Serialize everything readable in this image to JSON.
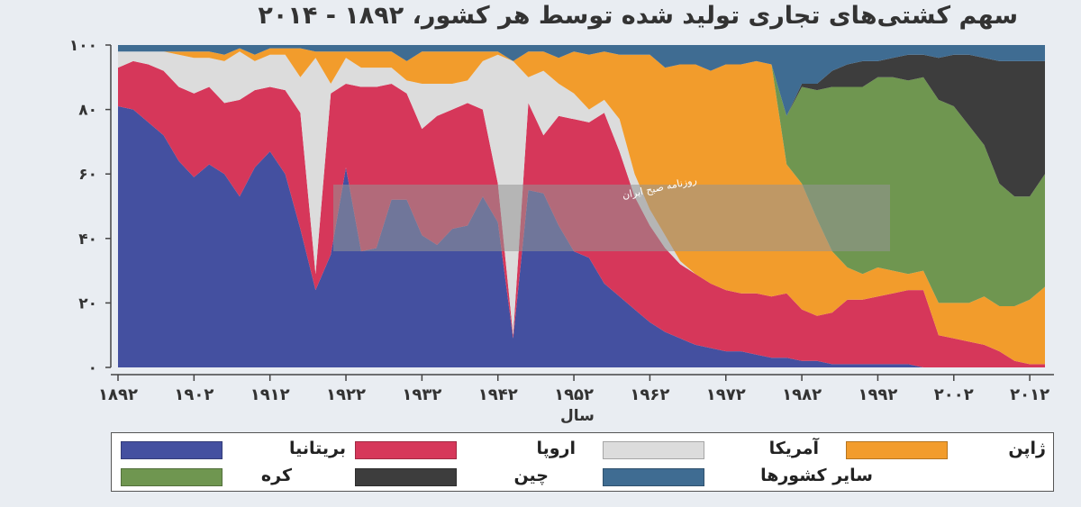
{
  "chart_data": {
    "type": "area",
    "stacked": true,
    "title": "سهم کشتی‌های تجاری تولید شده توسط هر کشور، ۱۸۹۲ - ۲۰۱۴",
    "xlabel": "سال",
    "ylabel": "",
    "xlim": [
      1892,
      2014
    ],
    "ylim": [
      0,
      100
    ],
    "yticks": [
      "۰",
      "۲۰",
      "۴۰",
      "۶۰",
      "۸۰",
      "۱۰۰"
    ],
    "xticks": [
      {
        "value": 1892,
        "label": "۱۸۹۲"
      },
      {
        "value": 1902,
        "label": "۱۹۰۲"
      },
      {
        "value": 1912,
        "label": "۱۹۱۲"
      },
      {
        "value": 1922,
        "label": "۱۹۲۲"
      },
      {
        "value": 1932,
        "label": "۱۹۳۲"
      },
      {
        "value": 1942,
        "label": "۱۹۴۲"
      },
      {
        "value": 1952,
        "label": "۱۹۵۲"
      },
      {
        "value": 1962,
        "label": "۱۹۶۲"
      },
      {
        "value": 1972,
        "label": "۱۹۷۲"
      },
      {
        "value": 1982,
        "label": "۱۹۸۲"
      },
      {
        "value": 1992,
        "label": "۱۹۹۲"
      },
      {
        "value": 2002,
        "label": "۲۰۰۲"
      },
      {
        "value": 2012,
        "label": "۲۰۱۲"
      }
    ],
    "x": [
      1892,
      1894,
      1896,
      1898,
      1900,
      1902,
      1904,
      1906,
      1908,
      1910,
      1912,
      1914,
      1916,
      1918,
      1920,
      1922,
      1924,
      1926,
      1928,
      1930,
      1932,
      1934,
      1936,
      1938,
      1940,
      1942,
      1944,
      1946,
      1948,
      1950,
      1952,
      1954,
      1956,
      1958,
      1960,
      1962,
      1964,
      1966,
      1968,
      1970,
      1972,
      1974,
      1976,
      1978,
      1980,
      1982,
      1984,
      1986,
      1988,
      1990,
      1992,
      1994,
      1996,
      1998,
      2000,
      2002,
      2004,
      2006,
      2008,
      2010,
      2012,
      2014
    ],
    "series": [
      {
        "name": "بریتانیا",
        "color": "#4450a0",
        "values": [
          81,
          80,
          76,
          72,
          64,
          59,
          63,
          60,
          53,
          62,
          67,
          60,
          43,
          24,
          35,
          62,
          36,
          37,
          52,
          52,
          41,
          38,
          43,
          44,
          53,
          45,
          9,
          55,
          54,
          44,
          36,
          34,
          26,
          22,
          18,
          14,
          11,
          9,
          7,
          6,
          5,
          5,
          4,
          3,
          3,
          2,
          2,
          1,
          1,
          1,
          1,
          1,
          1,
          0,
          0,
          0,
          0,
          0,
          0,
          0,
          0,
          0
        ]
      },
      {
        "name": "اروپا",
        "color": "#d6375a",
        "values": [
          12,
          15,
          18,
          20,
          23,
          26,
          24,
          22,
          30,
          24,
          20,
          26,
          36,
          5,
          50,
          26,
          51,
          50,
          36,
          33,
          33,
          40,
          37,
          38,
          27,
          12,
          1,
          27,
          18,
          34,
          41,
          42,
          53,
          45,
          35,
          30,
          26,
          23,
          22,
          20,
          19,
          18,
          19,
          19,
          20,
          16,
          14,
          16,
          20,
          20,
          21,
          22,
          23,
          24,
          10,
          9,
          8,
          7,
          5,
          2,
          1,
          1
        ]
      },
      {
        "name": "آمریکا",
        "color": "#dcdcdc",
        "values": [
          5,
          3,
          4,
          6,
          10,
          11,
          9,
          13,
          15,
          9,
          10,
          11,
          11,
          67,
          3,
          8,
          6,
          6,
          5,
          4,
          14,
          10,
          8,
          7,
          15,
          40,
          85,
          8,
          20,
          10,
          8,
          4,
          4,
          10,
          7,
          5,
          4,
          1,
          0,
          0,
          0,
          0,
          0,
          0,
          0,
          0,
          0,
          0,
          0,
          0,
          0,
          0,
          0,
          0,
          0,
          0,
          0,
          0,
          0,
          0,
          0,
          0
        ]
      },
      {
        "name": "ژاپن",
        "color": "#f29c2c",
        "values": [
          0,
          0,
          0,
          0,
          1,
          2,
          2,
          2,
          1,
          2,
          2,
          2,
          9,
          2,
          10,
          2,
          5,
          5,
          5,
          6,
          10,
          10,
          10,
          9,
          3,
          1,
          0,
          8,
          6,
          8,
          13,
          17,
          15,
          20,
          37,
          48,
          52,
          61,
          65,
          66,
          70,
          71,
          72,
          72,
          40,
          39,
          30,
          19,
          10,
          8,
          9,
          7,
          5,
          6,
          10,
          11,
          12,
          15,
          14,
          17,
          20,
          24
        ]
      },
      {
        "name": "کره",
        "color": "#6f9650",
        "values": [
          0,
          0,
          0,
          0,
          0,
          0,
          0,
          0,
          0,
          0,
          0,
          0,
          0,
          0,
          0,
          0,
          0,
          0,
          0,
          0,
          0,
          0,
          0,
          0,
          0,
          0,
          0,
          0,
          0,
          0,
          0,
          0,
          0,
          0,
          0,
          0,
          0,
          0,
          0,
          0,
          0,
          0,
          0,
          0,
          15,
          30,
          40,
          51,
          56,
          58,
          59,
          60,
          60,
          60,
          63,
          61,
          55,
          47,
          38,
          34,
          32,
          35
        ]
      },
      {
        "name": "چین",
        "color": "#3d3d3d",
        "values": [
          0,
          0,
          0,
          0,
          0,
          0,
          0,
          0,
          0,
          0,
          0,
          0,
          0,
          0,
          0,
          0,
          0,
          0,
          0,
          0,
          0,
          0,
          0,
          0,
          0,
          0,
          0,
          0,
          0,
          0,
          0,
          0,
          0,
          0,
          0,
          0,
          0,
          0,
          0,
          0,
          0,
          0,
          0,
          0,
          0,
          1,
          2,
          5,
          7,
          8,
          5,
          6,
          8,
          7,
          13,
          16,
          22,
          27,
          38,
          42,
          42,
          35
        ]
      },
      {
        "name": "سایر کشورها",
        "color": "#3f6c92",
        "values": [
          2,
          2,
          2,
          2,
          2,
          2,
          2,
          3,
          1,
          3,
          1,
          1,
          1,
          2,
          2,
          2,
          2,
          2,
          2,
          5,
          2,
          2,
          2,
          2,
          2,
          2,
          5,
          2,
          2,
          4,
          2,
          3,
          2,
          3,
          3,
          3,
          7,
          6,
          6,
          8,
          6,
          6,
          5,
          6,
          22,
          12,
          12,
          8,
          6,
          5,
          5,
          4,
          3,
          3,
          4,
          3,
          3,
          4,
          5,
          5,
          5,
          5
        ]
      }
    ]
  },
  "legend": {
    "items": [
      {
        "label": "بریتانیا",
        "color": "#4450a0"
      },
      {
        "label": "اروپا",
        "color": "#d6375a"
      },
      {
        "label": "آمریکا",
        "color": "#dcdcdc"
      },
      {
        "label": "ژاپن",
        "color": "#f29c2c"
      },
      {
        "label": "کره",
        "color": "#6f9650"
      },
      {
        "label": "چین",
        "color": "#3d3d3d"
      },
      {
        "label": "سایر کشورها",
        "color": "#3f6c92"
      }
    ]
  },
  "watermark": {
    "text": "روزنامه صبح ایران"
  }
}
